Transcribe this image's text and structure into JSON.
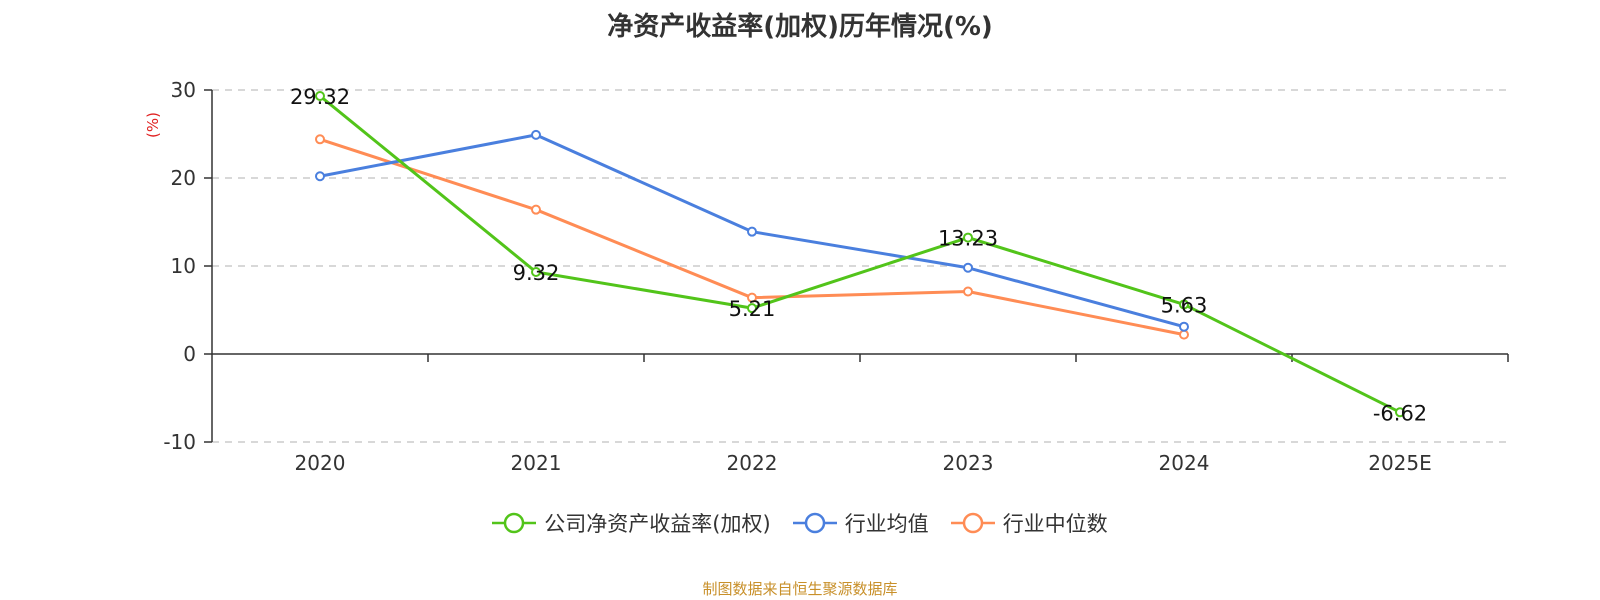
{
  "title": "净资产收益率(加权)历年情况(%)",
  "source": "制图数据来自恒生聚源数据库",
  "chart_data": {
    "type": "line",
    "title": "净资产收益率(加权)历年情况(%)",
    "ylabel": "(%)",
    "xlabel": "",
    "categories": [
      "2020",
      "2021",
      "2022",
      "2023",
      "2024",
      "2025E"
    ],
    "ylim": [
      -10,
      30
    ],
    "yticks": [
      -10,
      0,
      10,
      20,
      30
    ],
    "grid": true,
    "legend_position": "bottom",
    "series": [
      {
        "name": "公司净资产收益率(加权)",
        "color": "#52c41a",
        "values": [
          29.32,
          9.32,
          5.21,
          13.23,
          5.63,
          -6.62
        ],
        "labels": [
          "29.32",
          "9.32",
          "5.21",
          "13.23",
          "5.63",
          "-6.62"
        ]
      },
      {
        "name": "行业均值",
        "color": "#4a7fde",
        "values": [
          20.2,
          24.9,
          13.9,
          9.8,
          3.1,
          null
        ]
      },
      {
        "name": "行业中位数",
        "color": "#ff8c55",
        "values": [
          24.4,
          16.4,
          6.4,
          7.1,
          2.2,
          null
        ]
      }
    ]
  },
  "colors": {
    "unit_label": "#e02020",
    "source_text": "#c8902a"
  }
}
